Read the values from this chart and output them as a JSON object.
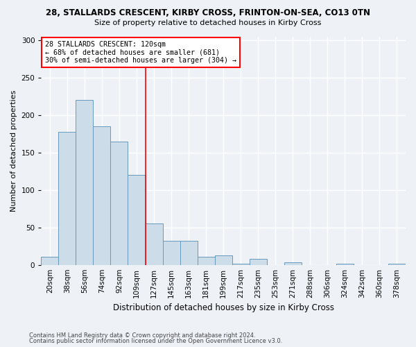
{
  "title1": "28, STALLARDS CRESCENT, KIRBY CROSS, FRINTON-ON-SEA, CO13 0TN",
  "title2": "Size of property relative to detached houses in Kirby Cross",
  "xlabel": "Distribution of detached houses by size in Kirby Cross",
  "ylabel": "Number of detached properties",
  "categories": [
    "20sqm",
    "38sqm",
    "56sqm",
    "74sqm",
    "92sqm",
    "109sqm",
    "127sqm",
    "145sqm",
    "163sqm",
    "181sqm",
    "199sqm",
    "217sqm",
    "235sqm",
    "253sqm",
    "271sqm",
    "288sqm",
    "306sqm",
    "324sqm",
    "342sqm",
    "360sqm",
    "378sqm"
  ],
  "values": [
    11,
    178,
    220,
    185,
    165,
    120,
    55,
    32,
    32,
    11,
    13,
    2,
    8,
    0,
    3,
    0,
    0,
    2,
    0,
    0,
    2
  ],
  "bar_color": "#ccdce8",
  "bar_edge_color": "#6699bb",
  "vline_color": "red",
  "annotation_text": "28 STALLARDS CRESCENT: 120sqm\n← 68% of detached houses are smaller (681)\n30% of semi-detached houses are larger (304) →",
  "annotation_box_color": "white",
  "annotation_box_edge": "red",
  "footnote1": "Contains HM Land Registry data © Crown copyright and database right 2024.",
  "footnote2": "Contains public sector information licensed under the Open Government Licence v3.0.",
  "ylim": [
    0,
    305
  ],
  "yticks": [
    0,
    50,
    100,
    150,
    200,
    250,
    300
  ],
  "background_color": "#eef2f7",
  "grid_color": "white",
  "title1_fontsize": 8.5,
  "title2_fontsize": 8.0,
  "ylabel_fontsize": 8.0,
  "xlabel_fontsize": 8.5,
  "tick_fontsize": 7.5,
  "footnote_fontsize": 6.0
}
